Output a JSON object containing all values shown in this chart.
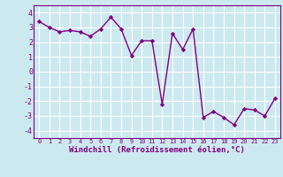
{
  "x": [
    0,
    1,
    2,
    3,
    4,
    5,
    6,
    7,
    8,
    9,
    10,
    11,
    12,
    13,
    14,
    15,
    16,
    17,
    18,
    19,
    20,
    21,
    22,
    23
  ],
  "y": [
    3.4,
    3.0,
    2.7,
    2.8,
    2.7,
    2.4,
    2.9,
    3.7,
    2.9,
    1.1,
    2.1,
    2.1,
    -2.2,
    2.6,
    1.5,
    2.9,
    -3.1,
    -2.7,
    -3.1,
    -3.6,
    -2.5,
    -2.6,
    -3.0,
    -1.8
  ],
  "line_color": "#800080",
  "marker": "D",
  "marker_size": 2.2,
  "line_width": 1.0,
  "xlabel": "Windchill (Refroidissement éolien,°C)",
  "xlabel_fontsize": 6.5,
  "xtick_labels": [
    "0",
    "1",
    "2",
    "3",
    "4",
    "5",
    "6",
    "7",
    "8",
    "9",
    "10",
    "11",
    "12",
    "13",
    "14",
    "15",
    "16",
    "17",
    "18",
    "19",
    "20",
    "21",
    "22",
    "23"
  ],
  "yticks": [
    -4,
    -3,
    -2,
    -1,
    0,
    1,
    2,
    3,
    4
  ],
  "ylim": [
    -4.5,
    4.5
  ],
  "xlim": [
    -0.5,
    23.5
  ],
  "bg_color": "#cce9f0",
  "grid_color": "#ffffff",
  "tick_color": "#800080",
  "label_color": "#800080",
  "spine_color": "#800080",
  "xtick_fontsize": 5.0,
  "ytick_fontsize": 6.0
}
